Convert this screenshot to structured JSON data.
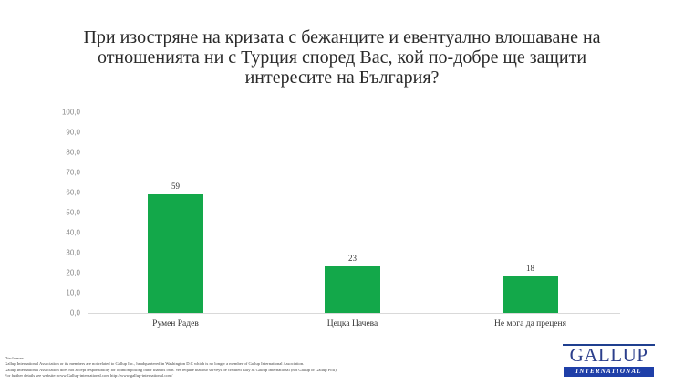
{
  "title": "При изостряне на кризата с бежанците и евентуално влошаване на отношенията ни с Турция според Вас, кой по-добре ще защити интересите на България?",
  "title_lines": [
    "При изостряне на кризата с бежанците и евентуално влошаване на",
    "отношенията ни с Турция според Вас, кой по-добре ще защити",
    "интересите на България?"
  ],
  "colors": {
    "bar": "#13a84a",
    "logo_blue": "#1f3fa8",
    "axis": "#d9d9d9"
  },
  "chart_data": {
    "type": "bar",
    "title": "При изостряне на кризата с бежанците и евентуално влошаване на отношенията ни с Турция според Вас, кой по-добре ще защити интересите на България?",
    "categories": [
      "Румен Радев",
      "Цецка Цачева",
      "Не мога да преценя"
    ],
    "values": [
      59,
      23,
      18
    ],
    "data_labels": [
      "59",
      "23",
      "18"
    ],
    "xlabel": "",
    "ylabel": "",
    "ylim": [
      0,
      100
    ],
    "yticks": [
      "0,0",
      "10,0",
      "20,0",
      "30,0",
      "40,0",
      "50,0",
      "60,0",
      "70,0",
      "80,0",
      "90,0",
      "100,0"
    ],
    "grid": false,
    "legend": null
  },
  "disclaimer": {
    "heading": "Disclaimer:",
    "lines": [
      "Gallup International Association or its members are not related to Gallup Inc., headquartered in Washington D.C which is no longer a member of Gallup International Association.",
      "Gallup International Association does not accept responsibility for opinion polling other than its own. We require that our surveys be credited fully as Gallup International (not Gallup or Gallup Poll).",
      "For further details see website: www.Gallup-international.com http://www.gallup-international.com/"
    ]
  },
  "logo": {
    "word": "GALLUP",
    "sub": "INTERNATIONAL"
  }
}
